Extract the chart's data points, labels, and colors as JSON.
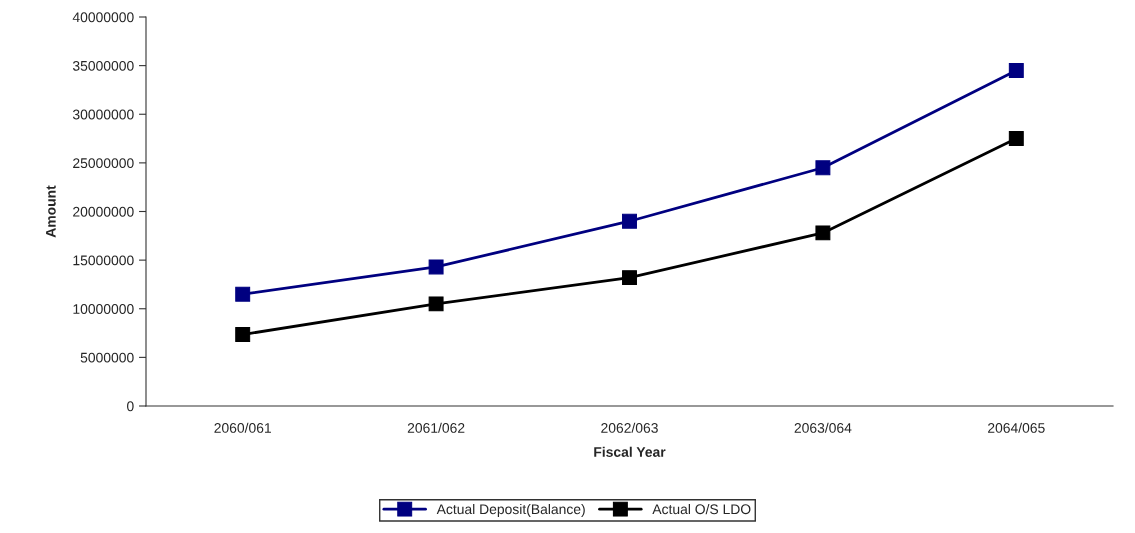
{
  "chart_data": {
    "type": "line",
    "xlabel": "Fiscal Year",
    "ylabel": "Amount",
    "categories": [
      "2060/061",
      "2061/062",
      "2062/063",
      "2063/064",
      "2064/065"
    ],
    "series": [
      {
        "name": "Actual Deposit(Balance)",
        "color": "#000080",
        "values": [
          11500000,
          14300000,
          19000000,
          24500000,
          34500000
        ]
      },
      {
        "name": "Actual O/S LDO",
        "color": "#000000",
        "values": [
          7350000,
          10500000,
          13200000,
          17800000,
          27500000
        ]
      }
    ],
    "ylim": [
      0,
      40000000
    ],
    "yticks": [
      0,
      5000000,
      10000000,
      15000000,
      20000000,
      25000000,
      30000000,
      35000000,
      40000000
    ],
    "grid": false,
    "legend": "bottom",
    "marker": "square",
    "line_style": "solid"
  }
}
